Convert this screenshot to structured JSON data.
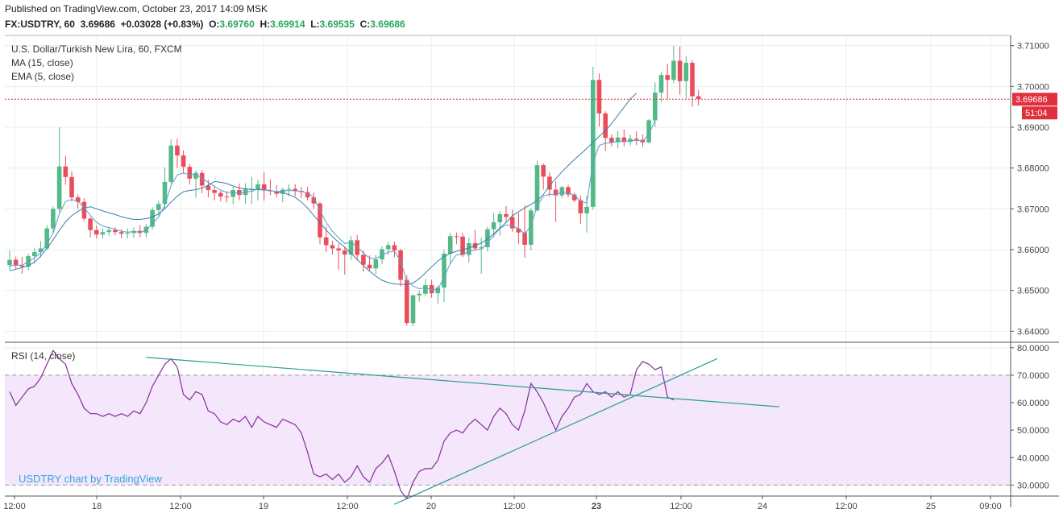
{
  "header": {
    "published": "Published on TradingView.com, October 23, 2017 14:09 MSK",
    "symbol": "FX:USDTRY, 60",
    "last": "3.69686",
    "change": "+0.03028 (+0.83%)",
    "o_label": "O:",
    "o": "3.69760",
    "h_label": "H:",
    "h": "3.69914",
    "l_label": "L:",
    "l": "3.69535",
    "c_label": "C:",
    "c": "3.69686"
  },
  "chart_data": [
    {
      "type": "candlestick",
      "title": "U.S. Dollar/Turkish New Lira, 60, FXCM",
      "indicators": [
        "MA (15, close)",
        "EMA (5, close)"
      ],
      "ylim": [
        3.6375,
        3.7125
      ],
      "y_ticks": [
        "3.71000",
        "3.70000",
        "3.69000",
        "3.68000",
        "3.67000",
        "3.66000",
        "3.65000",
        "3.64000"
      ],
      "last_price_tag": "3.69686",
      "countdown_tag": "51:04",
      "last_price": 3.69686,
      "colors": {
        "up": "#53b987",
        "down": "#eb4d5c",
        "ma": "#3b7fa8",
        "ema": "#5b9fc8",
        "price_line": "#e0303c"
      },
      "ohlc": [
        [
          3.6562,
          3.6598,
          3.6549,
          3.6575
        ],
        [
          3.6575,
          3.6583,
          3.6552,
          3.6561
        ],
        [
          3.6561,
          3.6582,
          3.6541,
          3.6558
        ],
        [
          3.6558,
          3.659,
          3.6549,
          3.6584
        ],
        [
          3.6584,
          3.6605,
          3.6566,
          3.6594
        ],
        [
          3.6594,
          3.6621,
          3.6581,
          3.6603
        ],
        [
          3.6603,
          3.666,
          3.6599,
          3.6652
        ],
        [
          3.6652,
          3.6706,
          3.664,
          3.67
        ],
        [
          3.67,
          3.69,
          3.6692,
          3.6804
        ],
        [
          3.6804,
          3.683,
          3.6759,
          3.6778
        ],
        [
          3.6778,
          3.6792,
          3.6718,
          3.6728
        ],
        [
          3.6728,
          3.6735,
          3.67,
          3.6717
        ],
        [
          3.6717,
          3.6726,
          3.667,
          3.6676
        ],
        [
          3.6676,
          3.668,
          3.663,
          3.6648
        ],
        [
          3.6648,
          3.666,
          3.6627,
          3.6637
        ],
        [
          3.6637,
          3.6652,
          3.6627,
          3.6643
        ],
        [
          3.6643,
          3.6655,
          3.6633,
          3.6648
        ],
        [
          3.6648,
          3.6655,
          3.6635,
          3.6643
        ],
        [
          3.6643,
          3.665,
          3.6628,
          3.6639
        ],
        [
          3.6639,
          3.6652,
          3.6627,
          3.6641
        ],
        [
          3.6641,
          3.6655,
          3.6629,
          3.6646
        ],
        [
          3.6646,
          3.666,
          3.663,
          3.6641
        ],
        [
          3.6641,
          3.6662,
          3.663,
          3.6656
        ],
        [
          3.6656,
          3.6704,
          3.6649,
          3.6697
        ],
        [
          3.6697,
          3.672,
          3.6681,
          3.6712
        ],
        [
          3.6712,
          3.6802,
          3.6701,
          3.6766
        ],
        [
          3.6766,
          3.687,
          3.676,
          3.6855
        ],
        [
          3.6855,
          3.6872,
          3.68,
          3.6831
        ],
        [
          3.6831,
          3.6843,
          3.6786,
          3.6803
        ],
        [
          3.6803,
          3.681,
          3.676,
          3.6774
        ],
        [
          3.6774,
          3.6794,
          3.6727,
          3.6788
        ],
        [
          3.6788,
          3.6795,
          3.6738,
          3.6757
        ],
        [
          3.6757,
          3.6771,
          3.6728,
          3.6746
        ],
        [
          3.6746,
          3.6758,
          3.6721,
          3.6739
        ],
        [
          3.6739,
          3.6744,
          3.6718,
          3.673
        ],
        [
          3.673,
          3.6743,
          3.6716,
          3.6729
        ],
        [
          3.6729,
          3.6754,
          3.6712,
          3.6746
        ],
        [
          3.6746,
          3.6762,
          3.6721,
          3.6734
        ],
        [
          3.6734,
          3.6763,
          3.6712,
          3.6748
        ],
        [
          3.6748,
          3.6778,
          3.6711,
          3.6748
        ],
        [
          3.6748,
          3.6771,
          3.6721,
          3.676
        ],
        [
          3.676,
          3.679,
          3.672,
          3.6745
        ],
        [
          3.6745,
          3.6772,
          3.6734,
          3.6743
        ],
        [
          3.6743,
          3.6758,
          3.6728,
          3.6737
        ],
        [
          3.6737,
          3.6752,
          3.6716,
          3.6747
        ],
        [
          3.6747,
          3.676,
          3.6731,
          3.6749
        ],
        [
          3.6749,
          3.676,
          3.6731,
          3.6744
        ],
        [
          3.6744,
          3.6754,
          3.6726,
          3.6741
        ],
        [
          3.6741,
          3.6754,
          3.6721,
          3.6728
        ],
        [
          3.6728,
          3.674,
          3.67,
          3.6713
        ],
        [
          3.6713,
          3.6717,
          3.6613,
          3.663
        ],
        [
          3.663,
          3.6657,
          3.6594,
          3.6611
        ],
        [
          3.6611,
          3.6622,
          3.6588,
          3.6603
        ],
        [
          3.6603,
          3.6614,
          3.6551,
          3.6598
        ],
        [
          3.6598,
          3.6607,
          3.6539,
          3.6588
        ],
        [
          3.6588,
          3.6634,
          3.6575,
          3.6623
        ],
        [
          3.6623,
          3.6636,
          3.6574,
          3.6587
        ],
        [
          3.6587,
          3.6598,
          3.6546,
          3.6563
        ],
        [
          3.6563,
          3.6586,
          3.6547,
          3.6554
        ],
        [
          3.6554,
          3.6587,
          3.654,
          3.6576
        ],
        [
          3.6576,
          3.6609,
          3.6565,
          3.6601
        ],
        [
          3.6601,
          3.6619,
          3.6587,
          3.6611
        ],
        [
          3.6611,
          3.662,
          3.6582,
          3.6598
        ],
        [
          3.6598,
          3.6602,
          3.651,
          3.6526
        ],
        [
          3.6526,
          3.6537,
          3.6413,
          3.642
        ],
        [
          3.642,
          3.649,
          3.6412,
          3.6488
        ],
        [
          3.6488,
          3.65,
          3.6472,
          3.6492
        ],
        [
          3.6492,
          3.6528,
          3.6486,
          3.6513
        ],
        [
          3.6513,
          3.6526,
          3.6482,
          3.6493
        ],
        [
          3.6493,
          3.6512,
          3.6467,
          3.6507
        ],
        [
          3.6507,
          3.66,
          3.6472,
          3.659
        ],
        [
          3.659,
          3.6641,
          3.6565,
          3.6633
        ],
        [
          3.6633,
          3.6642,
          3.6613,
          3.6632
        ],
        [
          3.6632,
          3.6641,
          3.6582,
          3.6587
        ],
        [
          3.6587,
          3.6629,
          3.6569,
          3.6616
        ],
        [
          3.6616,
          3.6648,
          3.6597,
          3.6603
        ],
        [
          3.6603,
          3.6629,
          3.6541,
          3.6606
        ],
        [
          3.6606,
          3.6656,
          3.6595,
          3.665
        ],
        [
          3.665,
          3.669,
          3.663,
          3.6667
        ],
        [
          3.6667,
          3.6694,
          3.6634,
          3.6687
        ],
        [
          3.6687,
          3.6707,
          3.6668,
          3.668
        ],
        [
          3.668,
          3.6698,
          3.6644,
          3.6652
        ],
        [
          3.6652,
          3.669,
          3.6614,
          3.6642
        ],
        [
          3.6642,
          3.6709,
          3.658,
          3.6612
        ],
        [
          3.6612,
          3.6702,
          3.6598,
          3.6696
        ],
        [
          3.6696,
          3.6818,
          3.6694,
          3.6807
        ],
        [
          3.6807,
          3.6811,
          3.6747,
          3.6779
        ],
        [
          3.6779,
          3.6789,
          3.673,
          3.6747
        ],
        [
          3.6747,
          3.6767,
          3.6668,
          3.6733
        ],
        [
          3.6733,
          3.6756,
          3.6726,
          3.6753
        ],
        [
          3.6753,
          3.6759,
          3.6728,
          3.6735
        ],
        [
          3.6735,
          3.674,
          3.6717,
          3.6721
        ],
        [
          3.6721,
          3.6732,
          3.6663,
          3.6689
        ],
        [
          3.6689,
          3.6732,
          3.6642,
          3.6705
        ],
        [
          3.6705,
          3.7048,
          3.6698,
          3.7016
        ],
        [
          3.7016,
          3.7032,
          3.6902,
          3.6934
        ],
        [
          3.6934,
          3.6939,
          3.6842,
          3.6874
        ],
        [
          3.6874,
          3.6882,
          3.6853,
          3.6863
        ],
        [
          3.6863,
          3.6891,
          3.6848,
          3.6875
        ],
        [
          3.6875,
          3.6895,
          3.6853,
          3.6864
        ],
        [
          3.6864,
          3.6882,
          3.6855,
          3.6872
        ],
        [
          3.6872,
          3.689,
          3.6856,
          3.6869
        ],
        [
          3.6869,
          3.6882,
          3.6852,
          3.6863
        ],
        [
          3.6863,
          3.692,
          3.686,
          3.6917
        ],
        [
          3.6917,
          3.701,
          3.6901,
          3.6985
        ],
        [
          3.6985,
          3.7035,
          3.6962,
          3.7028
        ],
        [
          3.7028,
          3.7055,
          3.6968,
          3.7016
        ],
        [
          3.7016,
          3.71,
          3.7008,
          3.7063
        ],
        [
          3.7063,
          3.7098,
          3.698,
          3.7013
        ],
        [
          3.7013,
          3.7075,
          3.6972,
          3.7058
        ],
        [
          3.7058,
          3.7064,
          3.695,
          3.6976
        ],
        [
          3.6976,
          3.6991,
          3.6953,
          3.6969
        ]
      ],
      "ma15": [
        3.6548,
        3.6552,
        3.6556,
        3.6561,
        3.6569,
        3.6584,
        3.6603,
        3.6624,
        3.6647,
        3.6668,
        3.6683,
        3.6694,
        3.6702,
        3.6705,
        3.67,
        3.6695,
        3.669,
        3.6686,
        3.6681,
        3.6677,
        3.6674,
        3.6674,
        3.6676,
        3.668,
        3.6688,
        3.67,
        3.6716,
        3.6731,
        3.6742,
        3.6745,
        3.6747,
        3.6751,
        3.6758,
        3.6767,
        3.6765,
        3.6762,
        3.6756,
        3.6751,
        3.6749,
        3.6748,
        3.6747,
        3.6746,
        3.6745,
        3.6742,
        3.6739,
        3.6735,
        3.6728,
        3.6717,
        3.6702,
        3.6684,
        3.6666,
        3.6648,
        3.6632,
        3.6618,
        3.6606,
        3.6591,
        3.6576,
        3.6561,
        3.6547,
        3.6535,
        3.6525,
        3.6519,
        3.6516,
        3.6515,
        3.6515,
        3.6518,
        3.6529,
        3.6543,
        3.6558,
        3.6572,
        3.6583,
        3.6591,
        3.6596,
        3.66,
        3.6604,
        3.661,
        3.6616,
        3.6626,
        3.6639,
        3.6653,
        3.6667,
        3.6683,
        3.6693,
        3.6702,
        3.6711,
        3.672,
        3.6735,
        3.6757,
        3.6774,
        3.6791,
        3.6806,
        3.6821,
        3.6834,
        3.6848,
        3.6863,
        3.6878,
        3.6892,
        3.6909,
        3.6929,
        3.6949,
        3.6969,
        3.6983
      ],
      "ema5": [
        3.656,
        3.6562,
        3.6562,
        3.657,
        3.658,
        3.6592,
        3.6615,
        3.664,
        3.6688,
        3.6718,
        3.6723,
        3.6719,
        3.6703,
        3.6684,
        3.6667,
        3.6658,
        3.6654,
        3.665,
        3.6645,
        3.6643,
        3.6644,
        3.6643,
        3.6647,
        3.6664,
        3.668,
        3.6709,
        3.6757,
        3.6783,
        3.6788,
        3.6783,
        3.6785,
        3.6775,
        3.6765,
        3.6755,
        3.6746,
        3.674,
        3.6741,
        3.6738,
        3.6741,
        3.6743,
        3.6749,
        3.6747,
        3.6745,
        3.6742,
        3.6744,
        3.6745,
        3.6744,
        3.6743,
        3.6738,
        3.6729,
        3.6696,
        3.6667,
        3.6645,
        3.6629,
        3.6615,
        3.6618,
        3.6607,
        3.6592,
        3.6579,
        3.6578,
        3.6586,
        3.6594,
        3.6596,
        3.6573,
        3.6522,
        3.6511,
        3.6504,
        3.6507,
        3.6502,
        3.6503,
        3.6532,
        3.6566,
        3.6588,
        3.6587,
        3.6597,
        3.6599,
        3.6601,
        3.6617,
        3.6634,
        3.6652,
        3.6661,
        3.6658,
        3.6652,
        3.6639,
        3.6658,
        3.6707,
        3.6731,
        3.6736,
        3.6735,
        3.6741,
        3.6739,
        3.6733,
        3.6719,
        3.6714,
        3.6815,
        3.6855,
        3.6861,
        3.6862,
        3.6866,
        3.6865,
        3.6867,
        3.6868,
        3.6866,
        3.6883,
        3.6917
      ],
      "x_ticks": [
        "12:00",
        "18",
        "12:00",
        "19",
        "12:00",
        "20",
        "12:00",
        "23",
        "12:00",
        "24",
        "12:00",
        "25",
        "09:00"
      ],
      "x_tick_bold": [
        "23"
      ]
    },
    {
      "type": "line",
      "title": "RSI (14, close)",
      "ylim": [
        26,
        82
      ],
      "band": [
        30,
        70
      ],
      "y_ticks": [
        "80.0000",
        "70.0000",
        "60.0000",
        "50.0000",
        "40.0000",
        "30.0000"
      ],
      "series_color": "#8a2b9e",
      "band_color": "#f4e6fb",
      "trendline_color": "#2a9d8f",
      "watermark": "USDTRY chart by TradingView",
      "rsi": [
        64,
        59,
        62,
        65,
        66,
        69,
        74,
        79,
        76,
        74,
        67,
        63,
        58,
        56,
        56,
        55,
        56,
        55,
        56,
        55,
        57,
        56,
        60,
        66,
        70,
        74,
        76,
        73,
        63,
        61,
        64,
        63,
        57,
        56,
        53,
        52,
        54,
        53,
        55,
        51,
        55,
        53,
        52,
        51,
        54,
        53,
        52,
        49,
        42,
        34,
        33,
        34,
        32,
        34,
        31,
        33,
        37,
        33,
        31,
        36,
        38,
        41,
        35,
        28,
        25,
        31,
        35,
        36,
        36,
        39,
        46,
        49,
        50,
        49,
        52,
        54,
        52,
        50,
        55,
        58,
        56,
        52,
        50,
        57,
        67,
        64,
        60,
        55,
        50,
        55,
        58,
        62,
        63,
        67,
        64,
        63,
        64,
        62,
        64,
        62,
        63,
        72,
        75,
        74,
        72,
        73,
        62,
        61
      ],
      "trendlines": [
        {
          "x1": 22,
          "y1": 76.5,
          "x2": 124,
          "y2": 58.5
        },
        {
          "x1": 62,
          "y1": 23,
          "x2": 114,
          "y2": 76
        }
      ]
    }
  ]
}
